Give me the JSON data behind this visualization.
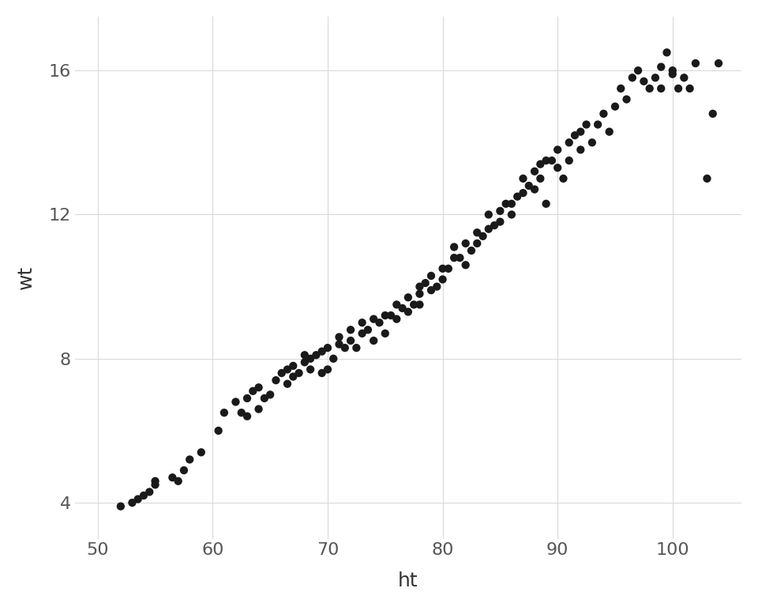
{
  "ht": [
    52.0,
    53.0,
    53.5,
    54.0,
    54.5,
    55.0,
    55.0,
    56.5,
    57.0,
    57.5,
    58.0,
    59.0,
    60.5,
    61.0,
    62.0,
    62.5,
    63.0,
    63.0,
    63.5,
    64.0,
    64.0,
    64.5,
    65.0,
    65.5,
    66.0,
    66.5,
    66.5,
    67.0,
    67.0,
    67.5,
    68.0,
    68.0,
    68.5,
    68.5,
    69.0,
    69.5,
    69.5,
    70.0,
    70.0,
    70.5,
    71.0,
    71.0,
    71.5,
    72.0,
    72.0,
    72.5,
    73.0,
    73.0,
    73.5,
    74.0,
    74.0,
    74.5,
    75.0,
    75.0,
    75.5,
    76.0,
    76.0,
    76.5,
    77.0,
    77.0,
    77.5,
    78.0,
    78.0,
    78.0,
    78.5,
    79.0,
    79.0,
    79.5,
    80.0,
    80.0,
    80.5,
    81.0,
    81.0,
    81.5,
    82.0,
    82.0,
    82.5,
    83.0,
    83.0,
    83.5,
    84.0,
    84.0,
    84.5,
    85.0,
    85.0,
    85.5,
    86.0,
    86.0,
    86.5,
    87.0,
    87.0,
    87.5,
    88.0,
    88.0,
    88.5,
    88.5,
    89.0,
    89.0,
    89.5,
    90.0,
    90.0,
    90.5,
    91.0,
    91.0,
    91.5,
    92.0,
    92.0,
    92.5,
    93.0,
    93.5,
    94.0,
    94.5,
    95.0,
    95.5,
    96.0,
    96.5,
    97.0,
    97.5,
    98.0,
    98.5,
    99.0,
    99.0,
    99.5,
    100.0,
    100.0,
    100.5,
    101.0,
    101.5,
    102.0,
    103.0,
    103.5,
    104.0
  ],
  "wt": [
    3.9,
    4.0,
    4.1,
    4.2,
    4.3,
    4.5,
    4.6,
    4.7,
    4.6,
    4.9,
    5.2,
    5.4,
    6.0,
    6.5,
    6.8,
    6.5,
    6.4,
    6.9,
    7.1,
    6.6,
    7.2,
    6.9,
    7.0,
    7.4,
    7.6,
    7.3,
    7.7,
    7.5,
    7.8,
    7.6,
    7.9,
    8.1,
    7.7,
    8.0,
    8.1,
    7.6,
    8.2,
    7.7,
    8.3,
    8.0,
    8.4,
    8.6,
    8.3,
    8.5,
    8.8,
    8.3,
    8.7,
    9.0,
    8.8,
    9.1,
    8.5,
    9.0,
    9.2,
    8.7,
    9.2,
    9.5,
    9.1,
    9.4,
    9.7,
    9.3,
    9.5,
    9.8,
    10.0,
    9.5,
    10.1,
    9.9,
    10.3,
    10.0,
    10.5,
    10.2,
    10.5,
    10.8,
    11.1,
    10.8,
    10.6,
    11.2,
    11.0,
    11.5,
    11.2,
    11.4,
    11.6,
    12.0,
    11.7,
    12.1,
    11.8,
    12.3,
    12.0,
    12.3,
    12.5,
    12.6,
    13.0,
    12.8,
    13.2,
    12.7,
    13.4,
    13.0,
    13.5,
    12.3,
    13.5,
    13.3,
    13.8,
    13.0,
    14.0,
    13.5,
    14.2,
    13.8,
    14.3,
    14.5,
    14.0,
    14.5,
    14.8,
    14.3,
    15.0,
    15.5,
    15.2,
    15.8,
    16.0,
    15.7,
    15.5,
    15.8,
    16.1,
    15.5,
    16.5,
    16.0,
    15.9,
    15.5,
    15.8,
    15.5,
    16.2,
    13.0,
    14.8,
    16.2
  ],
  "xlabel": "ht",
  "ylabel": "wt",
  "xlim": [
    48,
    106
  ],
  "ylim": [
    3.0,
    17.5
  ],
  "xticks": [
    50,
    60,
    70,
    80,
    90,
    100
  ],
  "yticks": [
    4,
    8,
    12,
    16
  ],
  "dot_color": "#1a1a1a",
  "dot_size": 55,
  "bg_color": "#ffffff",
  "panel_bg": "#ffffff",
  "grid_color": "#d9d9d9",
  "tick_label_fontsize": 16,
  "axis_label_fontsize": 18
}
